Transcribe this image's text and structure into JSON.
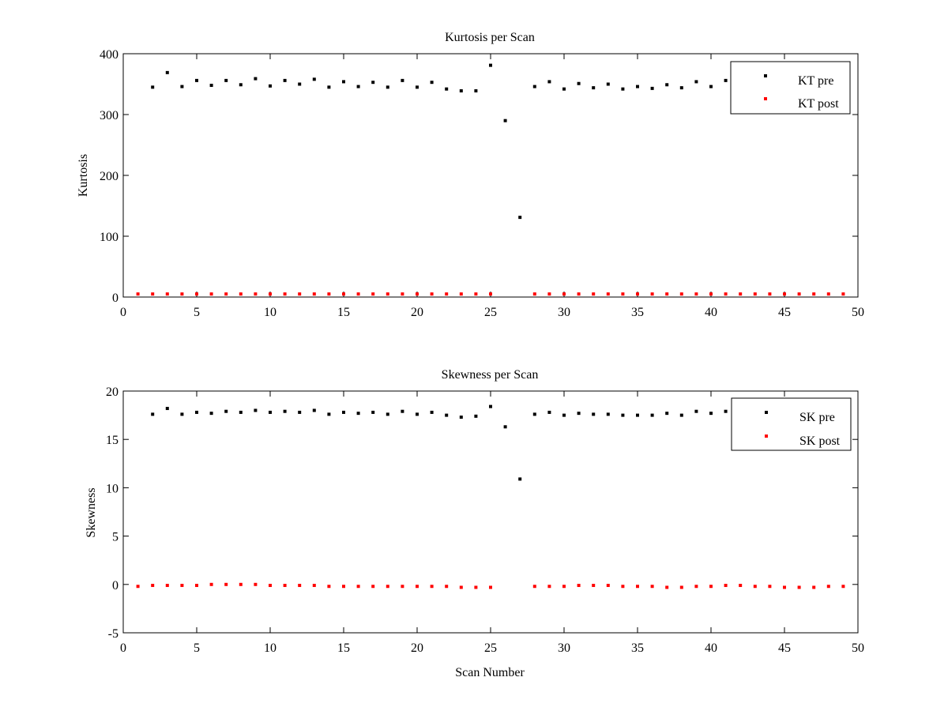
{
  "chart_data": [
    {
      "type": "scatter",
      "title": "Kurtosis per Scan",
      "xlabel": "",
      "ylabel": "Kurtosis",
      "xlim": [
        0,
        50
      ],
      "ylim": [
        0,
        400
      ],
      "xticks": [
        0,
        5,
        10,
        15,
        20,
        25,
        30,
        35,
        40,
        45,
        50
      ],
      "yticks": [
        0,
        100,
        200,
        300,
        400
      ],
      "grid": false,
      "legend_position": "top-right",
      "series": [
        {
          "name": "KT pre",
          "color": "#000000",
          "x": [
            2,
            3,
            4,
            5,
            6,
            7,
            8,
            9,
            10,
            11,
            12,
            13,
            14,
            15,
            16,
            17,
            18,
            19,
            20,
            21,
            22,
            23,
            24,
            25,
            26,
            27,
            28,
            29,
            30,
            31,
            32,
            33,
            34,
            35,
            36,
            37,
            38,
            39,
            40,
            41
          ],
          "y": [
            345,
            369,
            346,
            356,
            348,
            356,
            349,
            359,
            347,
            356,
            350,
            358,
            345,
            354,
            346,
            353,
            345,
            356,
            345,
            353,
            342,
            339,
            339,
            381,
            290,
            131,
            346,
            354,
            342,
            351,
            344,
            350,
            342,
            346,
            343,
            349,
            344,
            354,
            346,
            356
          ]
        },
        {
          "name": "KT post",
          "color": "#ff0000",
          "x": [
            1,
            2,
            3,
            4,
            5,
            6,
            7,
            8,
            9,
            10,
            11,
            12,
            13,
            14,
            15,
            16,
            17,
            18,
            19,
            20,
            21,
            22,
            23,
            24,
            25,
            28,
            29,
            30,
            31,
            32,
            33,
            34,
            35,
            36,
            37,
            38,
            39,
            40,
            41,
            42,
            43,
            44,
            45,
            46,
            47,
            48,
            49
          ],
          "y": [
            5,
            5,
            5,
            5,
            5,
            5,
            5,
            5,
            5,
            5,
            5,
            5,
            5,
            5,
            5,
            5,
            5,
            5,
            5,
            5,
            5,
            5,
            5,
            5,
            5,
            5,
            5,
            5,
            5,
            5,
            5,
            5,
            5,
            5,
            5,
            5,
            5,
            5,
            5,
            5,
            5,
            5,
            5,
            5,
            5,
            5,
            5
          ]
        }
      ]
    },
    {
      "type": "scatter",
      "title": "Skewness per Scan",
      "xlabel": "Scan Number",
      "ylabel": "Skewness",
      "xlim": [
        0,
        50
      ],
      "ylim": [
        -5,
        20
      ],
      "xticks": [
        0,
        5,
        10,
        15,
        20,
        25,
        30,
        35,
        40,
        45,
        50
      ],
      "yticks": [
        -5,
        0,
        5,
        10,
        15,
        20
      ],
      "grid": false,
      "legend_position": "top-right",
      "series": [
        {
          "name": "SK pre",
          "color": "#000000",
          "x": [
            2,
            3,
            4,
            5,
            6,
            7,
            8,
            9,
            10,
            11,
            12,
            13,
            14,
            15,
            16,
            17,
            18,
            19,
            20,
            21,
            22,
            23,
            24,
            25,
            26,
            27,
            28,
            29,
            30,
            31,
            32,
            33,
            34,
            35,
            36,
            37,
            38,
            39,
            40,
            41
          ],
          "y": [
            17.6,
            18.2,
            17.6,
            17.8,
            17.7,
            17.9,
            17.8,
            18.0,
            17.8,
            17.9,
            17.8,
            18.0,
            17.6,
            17.8,
            17.7,
            17.8,
            17.6,
            17.9,
            17.6,
            17.8,
            17.5,
            17.3,
            17.4,
            18.4,
            16.3,
            10.9,
            17.6,
            17.8,
            17.5,
            17.7,
            17.6,
            17.6,
            17.5,
            17.5,
            17.5,
            17.7,
            17.5,
            17.9,
            17.7,
            17.9
          ]
        },
        {
          "name": "SK post",
          "color": "#ff0000",
          "x": [
            1,
            2,
            3,
            4,
            5,
            6,
            7,
            8,
            9,
            10,
            11,
            12,
            13,
            14,
            15,
            16,
            17,
            18,
            19,
            20,
            21,
            22,
            23,
            24,
            25,
            28,
            29,
            30,
            31,
            32,
            33,
            34,
            35,
            36,
            37,
            38,
            39,
            40,
            41,
            42,
            43,
            44,
            45,
            46,
            47,
            48,
            49
          ],
          "y": [
            -0.2,
            -0.1,
            -0.1,
            -0.1,
            -0.1,
            0.0,
            0.0,
            0.0,
            0.0,
            -0.1,
            -0.1,
            -0.1,
            -0.1,
            -0.2,
            -0.2,
            -0.2,
            -0.2,
            -0.2,
            -0.2,
            -0.2,
            -0.2,
            -0.2,
            -0.3,
            -0.3,
            -0.3,
            -0.2,
            -0.2,
            -0.2,
            -0.1,
            -0.1,
            -0.1,
            -0.2,
            -0.2,
            -0.2,
            -0.3,
            -0.3,
            -0.2,
            -0.2,
            -0.1,
            -0.1,
            -0.2,
            -0.2,
            -0.3,
            -0.3,
            -0.3,
            -0.2,
            -0.2
          ]
        }
      ]
    }
  ]
}
